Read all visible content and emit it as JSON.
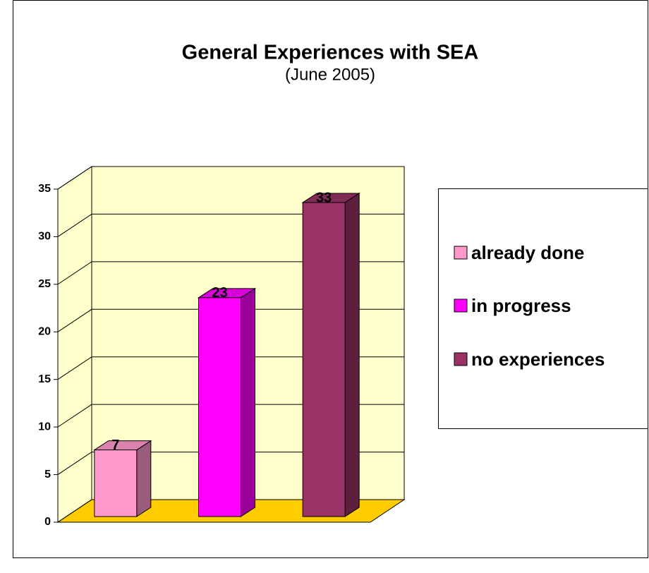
{
  "chart_data": {
    "type": "bar3d",
    "title": "General Experiences with SEA",
    "subtitle": "(June 2005)",
    "series": [
      {
        "name": "already done",
        "color": "#ff99cc",
        "values": [
          7
        ]
      },
      {
        "name": "in progress",
        "color": "#ff00ff",
        "values": [
          23
        ]
      },
      {
        "name": "no experiences",
        "color": "#993366",
        "values": [
          33
        ]
      }
    ],
    "ylim": [
      0,
      35
    ],
    "yticks": [
      0,
      5,
      10,
      15,
      20,
      25,
      30,
      35
    ],
    "grid": true,
    "legend": "right",
    "wall_color": "#ffffcc",
    "floor_color": "#ffcc00"
  }
}
